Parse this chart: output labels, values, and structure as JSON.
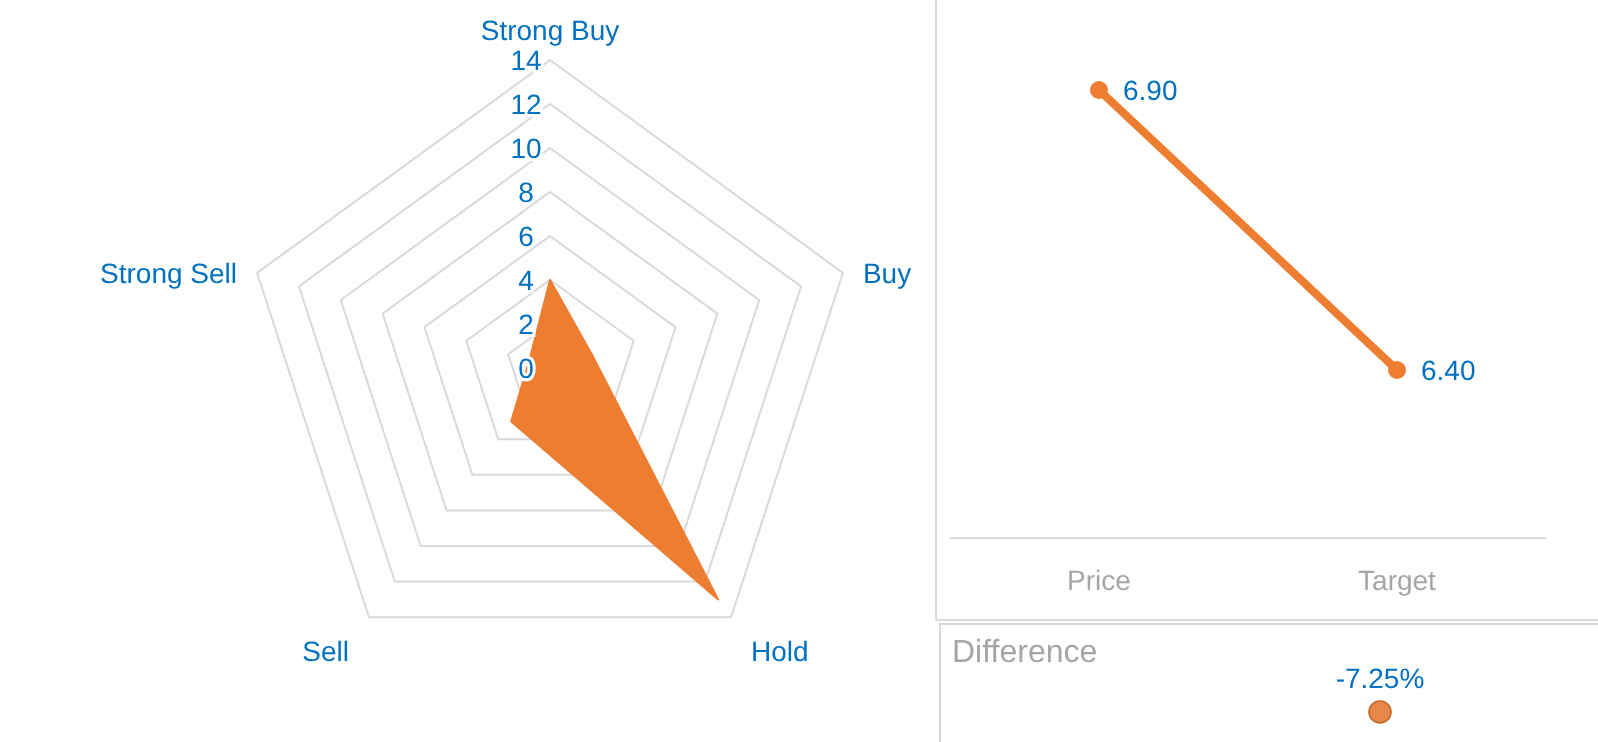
{
  "chart_data": [
    {
      "type": "radar",
      "categories": [
        "Strong Buy",
        "Buy",
        "Hold",
        "Sell",
        "Strong Sell"
      ],
      "series": [
        {
          "color": "#ed7d31",
          "values": [
            4,
            2,
            13,
            3,
            1
          ]
        }
      ],
      "ylim": [
        0,
        14
      ],
      "yticks": [
        0,
        2,
        4,
        6,
        8,
        10,
        12,
        14
      ],
      "grid": true
    },
    {
      "type": "line",
      "categories": [
        "Price",
        "Target"
      ],
      "series": [
        {
          "color": "#ed7d31",
          "values": [
            6.9,
            6.4
          ],
          "value_labels": [
            "6.90",
            "6.40"
          ]
        }
      ],
      "marker": "circle"
    },
    {
      "type": "other",
      "title": "Difference",
      "categories": [
        null
      ],
      "series": [
        {
          "color": "#e8874a",
          "values": [
            -7.25
          ],
          "value_labels": [
            "-7.25%"
          ]
        }
      ]
    }
  ]
}
